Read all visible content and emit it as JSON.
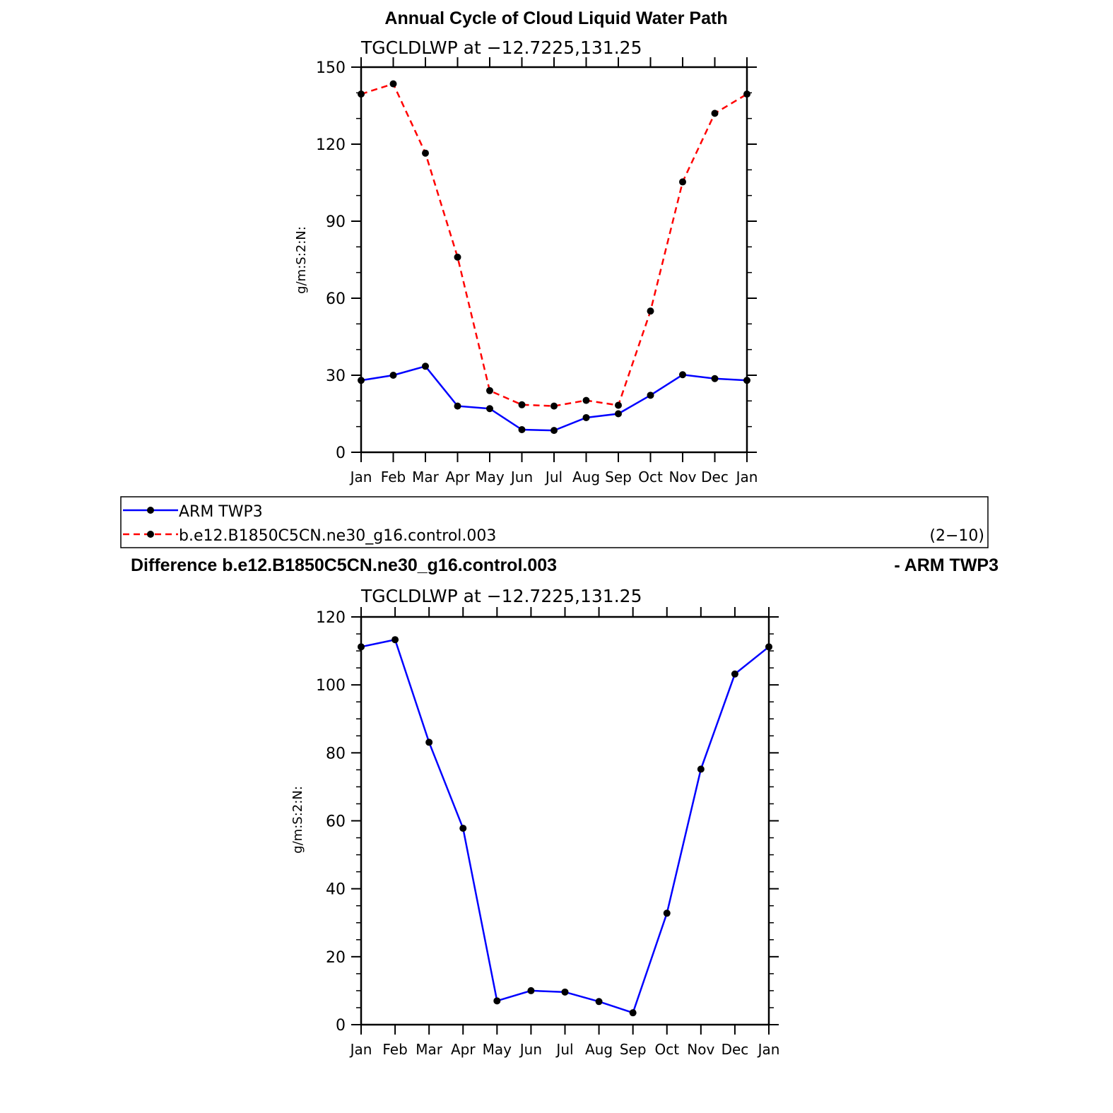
{
  "chart_data": [
    {
      "type": "line",
      "title": "Annual Cycle of Cloud Liquid Water Path",
      "subtitle": "TGCLDLWP at −12.7225,131.25",
      "ylabel": "g/m:S:2:N:",
      "xlabel": "",
      "ylim": [
        0,
        150
      ],
      "yticks": [
        0,
        30,
        60,
        90,
        120,
        150
      ],
      "categories": [
        "Jan",
        "Feb",
        "Mar",
        "Apr",
        "May",
        "Jun",
        "Jul",
        "Aug",
        "Sep",
        "Oct",
        "Nov",
        "Dec",
        "Jan"
      ],
      "series": [
        {
          "name": "ARM TWP3",
          "color": "#0000ff",
          "dash": "solid",
          "values": [
            28.0,
            30.0,
            33.5,
            18.0,
            17.0,
            8.8,
            8.5,
            13.5,
            15.0,
            22.2,
            30.2,
            28.7,
            28.0
          ]
        },
        {
          "name": "b.e12.B1850C5CN.ne30_g16.control.003",
          "color": "#ff0000",
          "dash": "dashed",
          "values": [
            139.5,
            143.5,
            116.5,
            76.0,
            24.0,
            18.5,
            18.0,
            20.2,
            18.3,
            55.0,
            105.3,
            132.0,
            139.5
          ]
        }
      ],
      "legend": {
        "position": "below",
        "note": "(2−10)"
      }
    },
    {
      "type": "line",
      "title": "Difference b.e12.B1850C5CN.ne30_g16.control.003",
      "title_right": "- ARM TWP3",
      "subtitle": "TGCLDLWP at −12.7225,131.25",
      "ylabel": "g/m:S:2:N:",
      "xlabel": "",
      "ylim": [
        0,
        120
      ],
      "yticks": [
        0,
        20,
        40,
        60,
        80,
        100,
        120
      ],
      "categories": [
        "Jan",
        "Feb",
        "Mar",
        "Apr",
        "May",
        "Jun",
        "Jul",
        "Aug",
        "Sep",
        "Oct",
        "Nov",
        "Dec",
        "Jan"
      ],
      "series": [
        {
          "name": "",
          "color": "#0000ff",
          "dash": "solid",
          "values": [
            111.2,
            113.3,
            83.1,
            57.8,
            7.0,
            10.0,
            9.6,
            6.8,
            3.5,
            32.8,
            75.2,
            103.2,
            111.2
          ]
        }
      ]
    }
  ]
}
